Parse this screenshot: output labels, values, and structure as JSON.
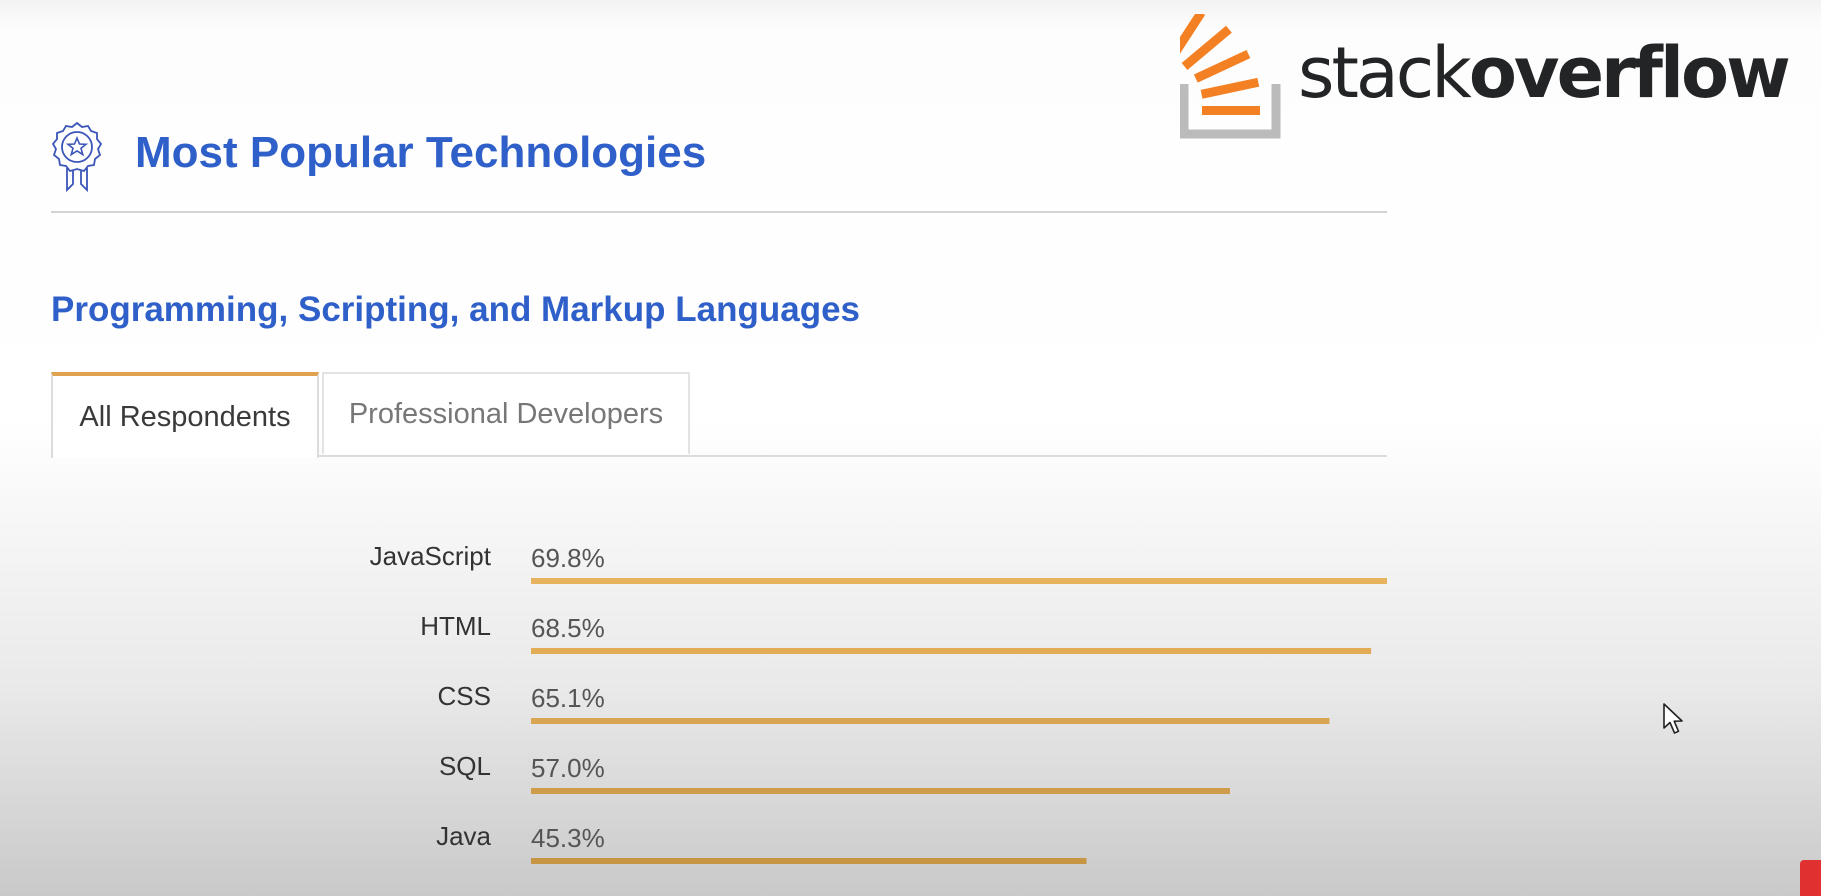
{
  "logo": {
    "word_light": "stack",
    "word_bold": "overflow",
    "orange": "#f48024",
    "gray": "#bcbbbb"
  },
  "section": {
    "title": "Most Popular Technologies",
    "icon": "award-ribbon-icon"
  },
  "subtitle": "Programming, Scripting, and Markup Languages",
  "tabs": [
    {
      "label": "All Respondents",
      "active": true
    },
    {
      "label": "Professional Developers",
      "active": false
    }
  ],
  "colors": {
    "accent_blue": "#2f5fc8",
    "bar": "#dfa752",
    "tab_accent": "#e0a24f"
  },
  "chart_data": {
    "type": "bar",
    "orientation": "horizontal",
    "categories": [
      "JavaScript",
      "HTML",
      "CSS",
      "SQL",
      "Java"
    ],
    "values": [
      69.8,
      68.5,
      65.1,
      57.0,
      45.3
    ],
    "value_labels": [
      "69.8%",
      "68.5%",
      "65.1%",
      "57.0%",
      "45.3%"
    ],
    "unit": "%",
    "xlim": [
      0,
      69.8
    ],
    "grid": false,
    "legend": "none"
  }
}
